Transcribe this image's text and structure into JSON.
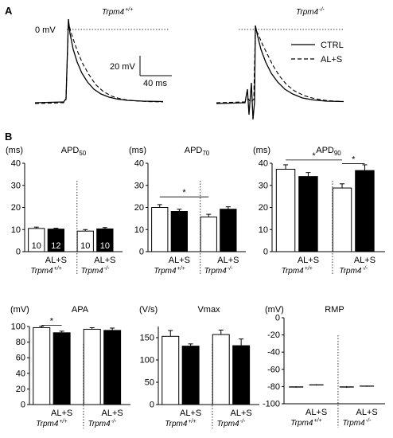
{
  "panel_a": {
    "letter": "A",
    "genotype_wt": "Trpm4",
    "genotype_wt_sup": "+/+",
    "genotype_ko": "Trpm4",
    "genotype_ko_sup": "-/-",
    "zero_label": "0 mV",
    "scalebar_v": "20 mV",
    "scalebar_t": "40 ms",
    "legend": [
      {
        "label": "CTRL",
        "style": "solid"
      },
      {
        "label": "AL+S",
        "style": "dashed"
      }
    ]
  },
  "panel_b": {
    "letter": "B"
  },
  "colors": {
    "ctrl": "#ffffff",
    "als": "#000000",
    "line": "#000000"
  },
  "chart_data": [
    {
      "type": "bar",
      "title": "APD",
      "title_sub": "50",
      "unit": "(ms)",
      "ylim": [
        0,
        40
      ],
      "yticks": [
        "0",
        "10",
        "20",
        "30",
        "40"
      ],
      "tick_values": [
        0,
        10,
        20,
        30,
        40
      ],
      "groups": [
        {
          "genotype": "Trpm4",
          "sup": "+/+",
          "treat_label": "AL+S",
          "values": [
            10.5,
            10.2
          ],
          "errors": [
            0.6,
            0.4
          ],
          "n": [
            "10",
            "12"
          ]
        },
        {
          "genotype": "Trpm4",
          "sup": "-/-",
          "treat_label": "AL+S",
          "values": [
            9.3,
            10.3
          ],
          "errors": [
            0.7,
            0.6
          ],
          "n": [
            "10",
            "10"
          ]
        }
      ],
      "series": [
        {
          "name": "CTRL"
        },
        {
          "name": "AL+S"
        }
      ],
      "sig": []
    },
    {
      "type": "bar",
      "title": "APD",
      "title_sub": "70",
      "unit": "(ms)",
      "ylim": [
        0,
        40
      ],
      "yticks": [
        "0",
        "10",
        "20",
        "30",
        "40"
      ],
      "tick_values": [
        0,
        10,
        20,
        30,
        40
      ],
      "groups": [
        {
          "genotype": "Trpm4",
          "sup": "+/+",
          "treat_label": "AL+S",
          "values": [
            20.0,
            18.2
          ],
          "errors": [
            1.3,
            1.0
          ],
          "n": [
            "",
            ""
          ]
        },
        {
          "genotype": "Trpm4",
          "sup": "-/-",
          "treat_label": "AL+S",
          "values": [
            15.7,
            19.2
          ],
          "errors": [
            1.2,
            1.1
          ],
          "n": [
            "",
            ""
          ]
        }
      ],
      "series": [
        {
          "name": "CTRL"
        },
        {
          "name": "AL+S"
        }
      ],
      "sig": [
        {
          "from": [
            0,
            0
          ],
          "to": [
            1,
            0
          ],
          "y": 24.8,
          "label": "*"
        }
      ]
    },
    {
      "type": "bar",
      "title": "APD",
      "title_sub": "90",
      "unit": "(ms)",
      "ylim": [
        0,
        40
      ],
      "yticks": [
        "0",
        "10",
        "20",
        "30",
        "40"
      ],
      "tick_values": [
        0,
        10,
        20,
        30,
        40
      ],
      "groups": [
        {
          "genotype": "Trpm4",
          "sup": "+/+",
          "treat_label": "AL+S",
          "values": [
            37.3,
            34.0
          ],
          "errors": [
            2.0,
            1.8
          ],
          "n": [
            "",
            ""
          ]
        },
        {
          "genotype": "Trpm4",
          "sup": "-/-",
          "treat_label": "AL+S",
          "values": [
            28.8,
            36.7
          ],
          "errors": [
            1.9,
            2.6
          ],
          "n": [
            "",
            ""
          ]
        }
      ],
      "series": [
        {
          "name": "CTRL"
        },
        {
          "name": "AL+S"
        }
      ],
      "sig": [
        {
          "from": [
            0,
            0
          ],
          "to": [
            1,
            0
          ],
          "y": 41.5,
          "label": "*"
        },
        {
          "from": [
            1,
            0
          ],
          "to": [
            1,
            1
          ],
          "y": 39.8,
          "label": "*"
        }
      ]
    },
    {
      "type": "bar",
      "title": "APA",
      "unit": "(mV)",
      "ylim": [
        0,
        100
      ],
      "yticks": [
        "0",
        "20",
        "40",
        "60",
        "80",
        "100"
      ],
      "tick_values": [
        0,
        20,
        40,
        60,
        80,
        100
      ],
      "groups": [
        {
          "genotype": "Trpm4",
          "sup": "+/+",
          "treat_label": "AL+S",
          "values": [
            98.5,
            92.0
          ],
          "errors": [
            2.0,
            2.0
          ],
          "n": [
            "",
            ""
          ]
        },
        {
          "genotype": "Trpm4",
          "sup": "-/-",
          "treat_label": "AL+S",
          "values": [
            96.5,
            95.0
          ],
          "errors": [
            2.0,
            3.0
          ],
          "n": [
            "",
            ""
          ]
        }
      ],
      "series": [
        {
          "name": "CTRL"
        },
        {
          "name": "AL+S"
        }
      ],
      "sig": [
        {
          "from": [
            0,
            0
          ],
          "to": [
            0,
            1
          ],
          "y": 101.5,
          "label": "*"
        }
      ]
    },
    {
      "type": "bar",
      "title": "Vmax",
      "unit": "(V/s)",
      "ylim": [
        0,
        175
      ],
      "yticks": [
        "0",
        "50",
        "100",
        "150"
      ],
      "tick_values": [
        0,
        50,
        100,
        150
      ],
      "groups": [
        {
          "genotype": "Trpm4",
          "sup": "+/+",
          "treat_label": "AL+S",
          "values": [
            153,
            131
          ],
          "errors": [
            13,
            5
          ],
          "n": [
            "",
            ""
          ]
        },
        {
          "genotype": "Trpm4",
          "sup": "-/-",
          "treat_label": "AL+S",
          "values": [
            157,
            132
          ],
          "errors": [
            10,
            15
          ],
          "n": [
            "",
            ""
          ]
        }
      ],
      "series": [
        {
          "name": "CTRL"
        },
        {
          "name": "AL+S"
        }
      ],
      "sig": []
    },
    {
      "type": "scatter",
      "title": "RMP",
      "unit": "(mV)",
      "ylim": [
        -100,
        0
      ],
      "yticks": [
        "0",
        "-20",
        "-40",
        "-60",
        "-80",
        "-100"
      ],
      "tick_values": [
        0,
        -20,
        -40,
        -60,
        -80,
        -100
      ],
      "groups": [
        {
          "genotype": "Trpm4",
          "sup": "+/+",
          "treat_label": "AL+S",
          "values": [
            -80.5,
            -78.0
          ],
          "errors": [
            0.8,
            0.8
          ],
          "n": [
            "",
            ""
          ]
        },
        {
          "genotype": "Trpm4",
          "sup": "-/-",
          "treat_label": "AL+S",
          "values": [
            -80.5,
            -79.5
          ],
          "errors": [
            1.0,
            0.8
          ],
          "n": [
            "",
            ""
          ]
        }
      ],
      "series": [
        {
          "name": "CTRL"
        },
        {
          "name": "AL+S"
        }
      ],
      "sig": []
    }
  ]
}
